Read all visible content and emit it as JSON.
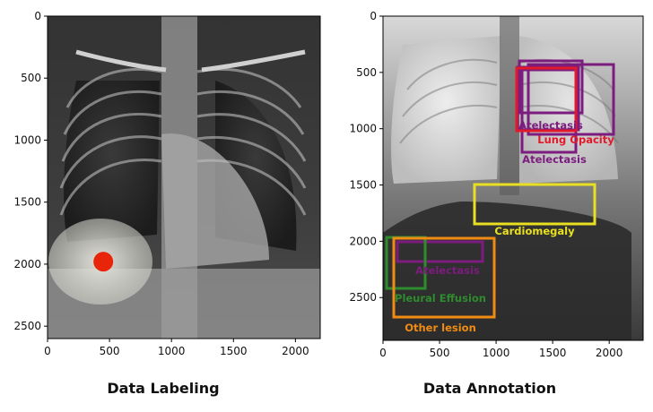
{
  "left_panel": {
    "caption": "Data Labeling",
    "y_ticks": [
      "0",
      "500",
      "1000",
      "1500",
      "2000",
      "2500"
    ],
    "x_ticks": [
      "0",
      "500",
      "1000",
      "1500",
      "2000"
    ],
    "marker": {
      "x": 450,
      "y": 1980,
      "color": "#e8250a"
    }
  },
  "right_panel": {
    "caption": "Data Annotation",
    "y_ticks": [
      "0",
      "500",
      "1000",
      "1500",
      "2000",
      "2500"
    ],
    "x_ticks": [
      "0",
      "500",
      "1000",
      "1500",
      "2000"
    ],
    "annotations": [
      {
        "label": "Atelectasis",
        "color": "#7b1c7e"
      },
      {
        "label": "Lung Opacity",
        "color": "#e01a2a"
      },
      {
        "label": "Atelectasis",
        "color": "#7b1c7e"
      },
      {
        "label": "Cardiomegaly",
        "color": "#e8e020"
      },
      {
        "label": "Atelectasis",
        "color": "#7b1c7e"
      },
      {
        "label": "Pleural Effusion",
        "color": "#2e8b2e"
      },
      {
        "label": "Other lesion",
        "color": "#f08c14"
      }
    ]
  }
}
